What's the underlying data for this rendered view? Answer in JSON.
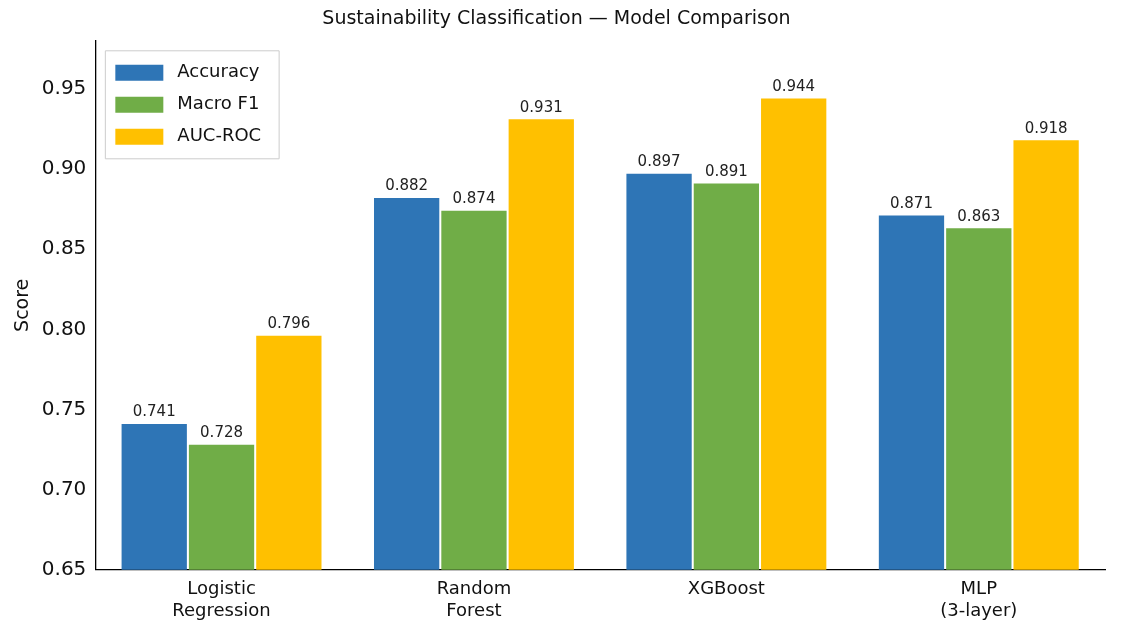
{
  "chart_data": {
    "type": "bar",
    "title": "Sustainability Classification — Model Comparison",
    "ylabel": "Score",
    "categories": [
      "Logistic\nRegression",
      "Random\nForest",
      "XGBoost",
      "MLP\n(3-layer)"
    ],
    "series": [
      {
        "name": "Accuracy",
        "color": "#2e75b6",
        "values": [
          0.741,
          0.882,
          0.897,
          0.871
        ]
      },
      {
        "name": "Macro F1",
        "color": "#70ad47",
        "values": [
          0.728,
          0.874,
          0.891,
          0.863
        ]
      },
      {
        "name": "AUC-ROC",
        "color": "#ffc000",
        "values": [
          0.796,
          0.931,
          0.944,
          0.918
        ]
      }
    ],
    "ylim": [
      0.65,
      0.98
    ],
    "yticks": [
      {
        "value": 0.65,
        "label": "0.65"
      },
      {
        "value": 0.7,
        "label": "0.70"
      },
      {
        "value": 0.75,
        "label": "0.75"
      },
      {
        "value": 0.8,
        "label": "0.80"
      },
      {
        "value": 0.85,
        "label": "0.85"
      },
      {
        "value": 0.9,
        "label": "0.90"
      },
      {
        "value": 0.95,
        "label": "0.95"
      }
    ],
    "grid": false,
    "legend": "top left",
    "data_labels": true
  }
}
